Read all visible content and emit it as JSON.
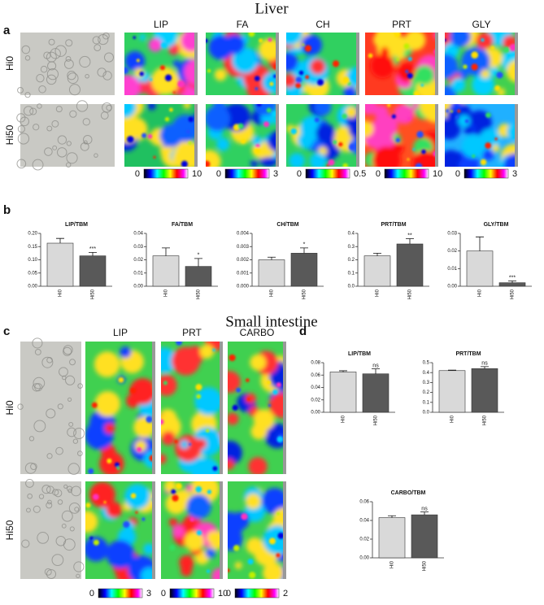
{
  "figure": {
    "liver": {
      "title": "Liver",
      "panel_a": "a",
      "panel_b": "b",
      "rows": [
        "Hi0",
        "Hi50"
      ],
      "columns": [
        "LIP",
        "FA",
        "CH",
        "PRT",
        "GLY"
      ],
      "colorbars": [
        {
          "min": 0,
          "max": 10
        },
        {
          "min": 0,
          "max": 3
        },
        {
          "min": 0,
          "max": 0.5
        },
        {
          "min": 0,
          "max": 10
        },
        {
          "min": 0,
          "max": 3
        }
      ]
    },
    "intestine": {
      "title": "Small intestine",
      "panel_c": "c",
      "panel_d": "d",
      "rows": [
        "Hi0",
        "Hi50"
      ],
      "columns": [
        "LIP",
        "PRT",
        "CARBO"
      ],
      "colorbars": [
        {
          "min": 0,
          "max": 3
        },
        {
          "min": 0,
          "max": 10
        },
        {
          "min": 0,
          "max": 2
        }
      ]
    }
  },
  "chart_data": [
    {
      "type": "bar",
      "title": "LIP/TBM",
      "categories": [
        "Hi0",
        "Hi50"
      ],
      "values": [
        0.163,
        0.115
      ],
      "errors": [
        0.018,
        0.013
      ],
      "colors": [
        "#d9d9d9",
        "#595959"
      ],
      "significance": [
        null,
        "***"
      ],
      "ylim": [
        0,
        0.2
      ],
      "yticks": [
        {
          "value": 0,
          "label": "0.00"
        },
        {
          "value": 0.05,
          "label": "0.05"
        },
        {
          "value": 0.1,
          "label": "0.10"
        },
        0.15,
        {
          "value": 0.2,
          "label": "0.20"
        }
      ]
    },
    {
      "type": "bar",
      "title": "FA/TBM",
      "categories": [
        "Hi0",
        "Hi50"
      ],
      "values": [
        0.023,
        0.015
      ],
      "errors": [
        0.006,
        0.006
      ],
      "colors": [
        "#d9d9d9",
        "#595959"
      ],
      "significance": [
        null,
        "*"
      ],
      "ylim": [
        0,
        0.04
      ],
      "yticks": [
        {
          "value": 0,
          "label": "0.00"
        },
        0.01,
        0.02,
        0.03,
        0.04
      ]
    },
    {
      "type": "bar",
      "title": "CH/TBM",
      "categories": [
        "Hi0",
        "Hi50"
      ],
      "values": [
        0.002,
        0.0025
      ],
      "errors": [
        0.0002,
        0.0004
      ],
      "colors": [
        "#d9d9d9",
        "#595959"
      ],
      "significance": [
        null,
        "*"
      ],
      "ylim": [
        0,
        0.004
      ],
      "yticks": [
        {
          "value": 0,
          "label": "0.000"
        },
        0.001,
        {
          "value": 0.002,
          "label": "0.002"
        },
        0.003,
        0.004
      ]
    },
    {
      "type": "bar",
      "title": "PRT/TBM",
      "categories": [
        "Hi0",
        "Hi50"
      ],
      "values": [
        0.23,
        0.32
      ],
      "errors": [
        0.02,
        0.04
      ],
      "colors": [
        "#d9d9d9",
        "#595959"
      ],
      "significance": [
        null,
        "**"
      ],
      "ylim": [
        0,
        0.4
      ],
      "yticks": [
        {
          "value": 0,
          "label": "0.0"
        },
        0.1,
        0.2,
        0.3,
        0.4
      ]
    },
    {
      "type": "bar",
      "title": "GLY/TBM",
      "categories": [
        "Hi0",
        "Hi50"
      ],
      "values": [
        0.02,
        0.002
      ],
      "errors": [
        0.008,
        0.001
      ],
      "colors": [
        "#d9d9d9",
        "#595959"
      ],
      "significance": [
        null,
        "***"
      ],
      "ylim": [
        0,
        0.03
      ],
      "yticks": [
        {
          "value": 0,
          "label": "0.00"
        },
        0.01,
        {
          "value": 0.02,
          "label": "0.02"
        },
        0.03
      ]
    },
    {
      "type": "bar",
      "title": "LIP/TBM",
      "categories": [
        "Hi0",
        "Hi50"
      ],
      "values": [
        0.065,
        0.062
      ],
      "errors": [
        0.002,
        0.008
      ],
      "colors": [
        "#d9d9d9",
        "#595959"
      ],
      "significance": [
        null,
        "ns"
      ],
      "ylim": [
        0,
        0.08
      ],
      "yticks": [
        {
          "value": 0,
          "label": "0.00"
        },
        0.02,
        0.04,
        0.06,
        0.08
      ]
    },
    {
      "type": "bar",
      "title": "PRT/TBM",
      "categories": [
        "Hi0",
        "Hi50"
      ],
      "values": [
        0.42,
        0.44
      ],
      "errors": [
        0.005,
        0.02
      ],
      "colors": [
        "#d9d9d9",
        "#595959"
      ],
      "significance": [
        null,
        "ns"
      ],
      "ylim": [
        0,
        0.5
      ],
      "yticks": [
        {
          "value": 0,
          "label": "0.0"
        },
        0.1,
        0.2,
        0.3,
        0.4,
        0.5
      ]
    },
    {
      "type": "bar",
      "title": "CARBO/TBM",
      "categories": [
        "Hi0",
        "Hi50"
      ],
      "values": [
        0.043,
        0.046
      ],
      "errors": [
        0.002,
        0.003
      ],
      "colors": [
        "#d9d9d9",
        "#595959"
      ],
      "significance": [
        null,
        "ns"
      ],
      "ylim": [
        0,
        0.06
      ],
      "yticks": [
        {
          "value": 0,
          "label": "0.00"
        },
        0.02,
        0.04,
        0.06
      ]
    }
  ]
}
